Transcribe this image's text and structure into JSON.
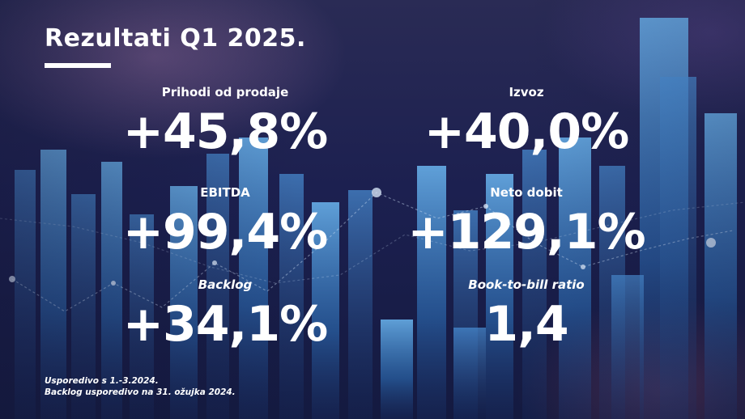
{
  "title": "Rezultati Q1 2025.",
  "metrics": [
    {
      "label": "Prihodi od prodaje",
      "value": "+45,8%"
    },
    {
      "label": "Izvoz",
      "value": "+40,0%"
    },
    {
      "label": "EBITDA",
      "value": "+99,4%"
    },
    {
      "label": "Neto dobit",
      "value": "+129,1%"
    },
    {
      "label": "Backlog",
      "value": "+34,1%"
    },
    {
      "label": "Book-to-bill ratio",
      "value": "1,4"
    }
  ],
  "footnotes": [
    "Usporedivo s 1.-3.2024.",
    "Backlog usporedivo na 31. ožujka 2024."
  ],
  "colors": {
    "text": "#ffffff",
    "bar_light": "#5aa8e6",
    "bar_dark": "#1f5fa8",
    "dots": "#d6e4f5"
  }
}
